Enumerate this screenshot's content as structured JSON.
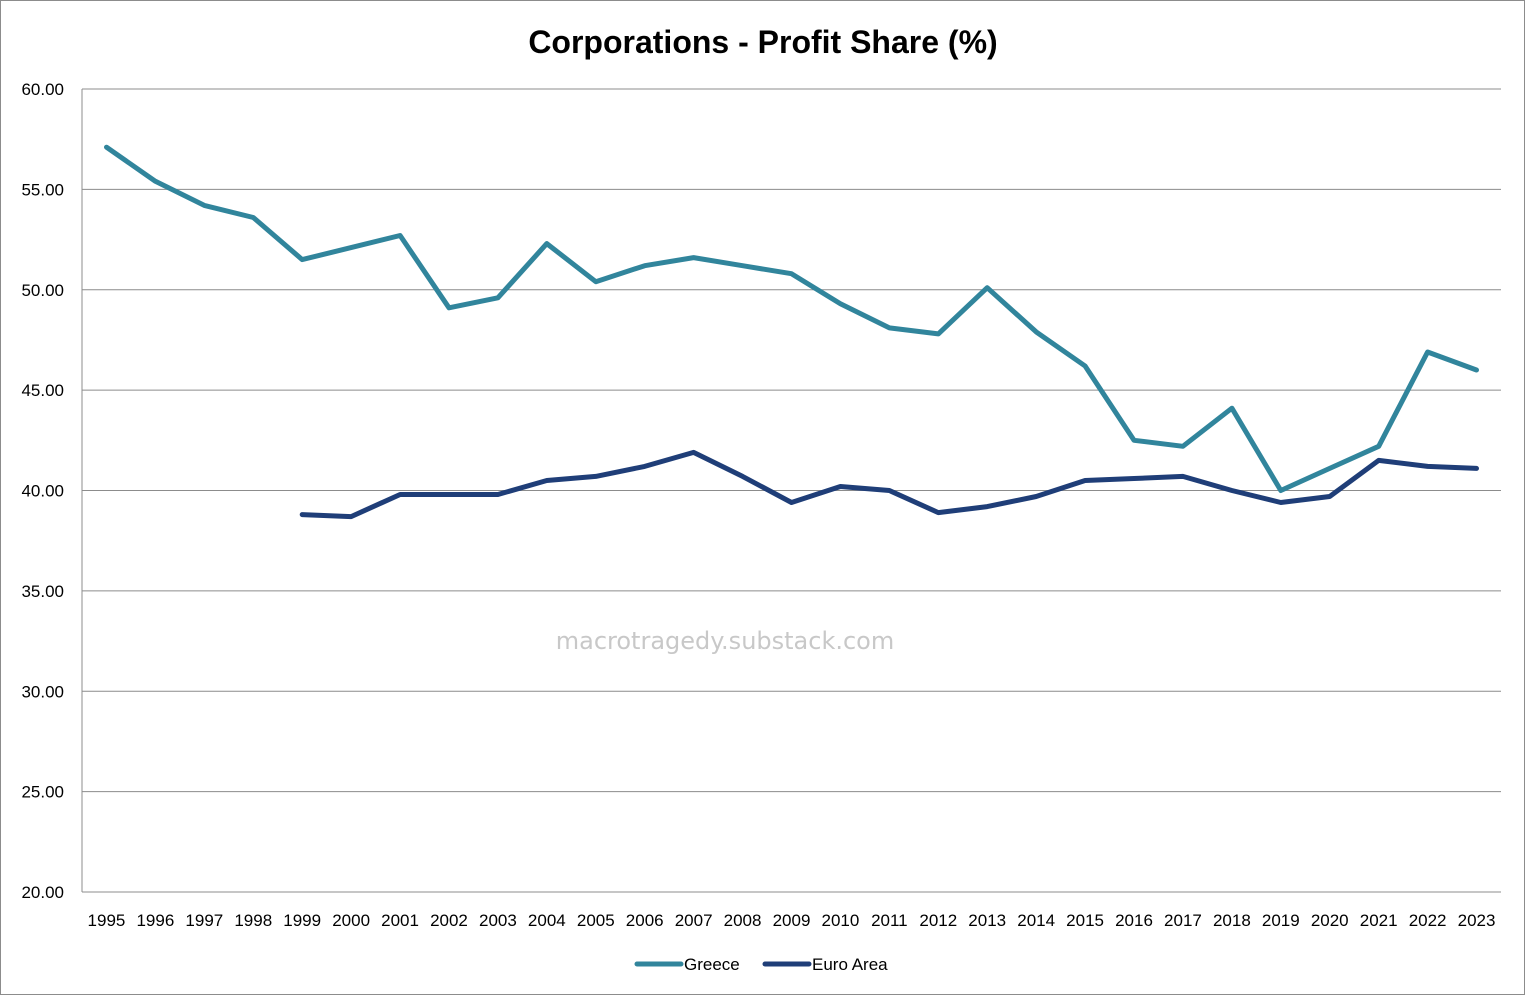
{
  "chart_data": {
    "type": "line",
    "title": "Corporations - Profit Share (%)",
    "xlabel": "",
    "ylabel": "",
    "ylim": [
      20,
      60
    ],
    "y_ticks": [
      "20.00",
      "25.00",
      "30.00",
      "35.00",
      "40.00",
      "45.00",
      "50.00",
      "55.00",
      "60.00"
    ],
    "grid": true,
    "legend_position": "bottom",
    "categories": [
      "1995",
      "1996",
      "1997",
      "1998",
      "1999",
      "2000",
      "2001",
      "2002",
      "2003",
      "2004",
      "2005",
      "2006",
      "2007",
      "2008",
      "2009",
      "2010",
      "2011",
      "2012",
      "2013",
      "2014",
      "2015",
      "2016",
      "2017",
      "2018",
      "2019",
      "2020",
      "2021",
      "2022",
      "2023"
    ],
    "series": [
      {
        "name": "Greece",
        "color": "#31859c",
        "values": [
          57.1,
          55.4,
          54.2,
          53.6,
          51.5,
          52.1,
          52.7,
          49.1,
          49.6,
          52.3,
          50.4,
          51.2,
          51.6,
          51.2,
          50.8,
          49.3,
          48.1,
          47.8,
          50.1,
          47.9,
          46.2,
          42.5,
          42.2,
          44.1,
          40.0,
          41.1,
          42.2,
          46.9,
          46.0
        ]
      },
      {
        "name": "Euro Area",
        "color": "#1f3e78",
        "values": [
          null,
          null,
          null,
          null,
          38.8,
          38.7,
          39.8,
          39.8,
          39.8,
          40.5,
          40.7,
          41.2,
          41.9,
          40.7,
          39.4,
          40.2,
          40.0,
          38.9,
          39.2,
          39.7,
          40.5,
          40.6,
          40.7,
          40.0,
          39.4,
          39.7,
          41.5,
          41.2,
          41.1
        ]
      }
    ],
    "watermark": "macrotragedy.substack.com"
  }
}
